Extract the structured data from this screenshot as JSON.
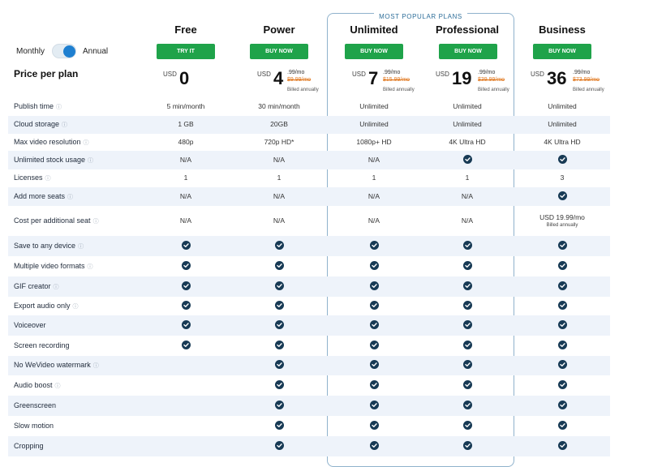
{
  "popular_label": "MOST POPULAR PLANS",
  "billing": {
    "monthly": "Monthly",
    "annual": "Annual"
  },
  "price_title": "Price per plan",
  "plans": [
    {
      "name": "Free",
      "button": "TRY IT",
      "currency": "USD",
      "price": "0",
      "cents": "",
      "old": "",
      "billed": ""
    },
    {
      "name": "Power",
      "button": "BUY NOW",
      "currency": "USD",
      "price": "4",
      "cents": ".99/mo",
      "old": "$9.99/mo",
      "billed": "Billed annually"
    },
    {
      "name": "Unlimited",
      "button": "BUY NOW",
      "currency": "USD",
      "price": "7",
      "cents": ".99/mo",
      "old": "$15.99/mo",
      "billed": "Billed annually"
    },
    {
      "name": "Professional",
      "button": "BUY NOW",
      "currency": "USD",
      "price": "19",
      "cents": ".99/mo",
      "old": "$39.99/mo",
      "billed": "Billed annually"
    },
    {
      "name": "Business",
      "button": "BUY NOW",
      "currency": "USD",
      "price": "36",
      "cents": ".99/mo",
      "old": "$73.99/mo",
      "billed": "Billed annually"
    }
  ],
  "features": [
    {
      "name": "Publish time",
      "values": [
        "5 min/month",
        "30 min/month",
        "Unlimited",
        "Unlimited",
        "Unlimited"
      ]
    },
    {
      "name": "Cloud storage",
      "values": [
        "1 GB",
        "20GB",
        "Unlimited",
        "Unlimited",
        "Unlimited"
      ]
    },
    {
      "name": "Max video resolution",
      "values": [
        "480p",
        "720p HD*",
        "1080p+ HD",
        "4K Ultra HD",
        "4K Ultra HD"
      ]
    },
    {
      "name": "Unlimited stock usage",
      "values": [
        "N/A",
        "N/A",
        "N/A",
        "check",
        "check"
      ]
    },
    {
      "name": "Licenses",
      "values": [
        "1",
        "1",
        "1",
        "1",
        "3"
      ]
    },
    {
      "name": "Add more seats",
      "values": [
        "N/A",
        "N/A",
        "N/A",
        "N/A",
        "check"
      ]
    },
    {
      "name": "Cost per additional seat",
      "values": [
        "N/A",
        "N/A",
        "N/A",
        "N/A",
        "USD 19.99/mo"
      ],
      "sub": [
        "",
        "",
        "",
        "",
        "Billed annually"
      ]
    },
    {
      "name": "Save to any device",
      "values": [
        "check",
        "check",
        "check",
        "check",
        "check"
      ]
    },
    {
      "name": "Multiple video formats",
      "values": [
        "check",
        "check",
        "check",
        "check",
        "check"
      ]
    },
    {
      "name": "GIF creator",
      "values": [
        "check",
        "check",
        "check",
        "check",
        "check"
      ]
    },
    {
      "name": "Export audio only",
      "values": [
        "check",
        "check",
        "check",
        "check",
        "check"
      ]
    },
    {
      "name": "Voiceover",
      "values": [
        "check",
        "check",
        "check",
        "check",
        "check"
      ]
    },
    {
      "name": "Screen recording",
      "values": [
        "check",
        "check",
        "check",
        "check",
        "check"
      ]
    },
    {
      "name": "No WeVideo watermark",
      "values": [
        "",
        "check",
        "check",
        "check",
        "check"
      ]
    },
    {
      "name": "Audio boost",
      "values": [
        "",
        "check",
        "check",
        "check",
        "check"
      ]
    },
    {
      "name": "Greenscreen",
      "values": [
        "",
        "check",
        "check",
        "check",
        "check"
      ]
    },
    {
      "name": "Slow motion",
      "values": [
        "",
        "check",
        "check",
        "check",
        "check"
      ]
    },
    {
      "name": "Cropping",
      "values": [
        "",
        "check",
        "check",
        "check",
        "check"
      ]
    }
  ],
  "info_features": [
    "Publish time",
    "Cloud storage",
    "Max video resolution",
    "Unlimited stock usage",
    "Licenses",
    "Add more seats",
    "Cost per additional seat",
    "Save to any device",
    "Multiple video formats",
    "GIF creator",
    "Export audio only",
    "No WeVideo watermark",
    "Audio boost"
  ],
  "colors": {
    "accent": "#1fa34a",
    "check": "#173a55",
    "popular_border": "#8fb2cc",
    "shade": "#eef3fa",
    "toggle": "#1e7fd0"
  }
}
